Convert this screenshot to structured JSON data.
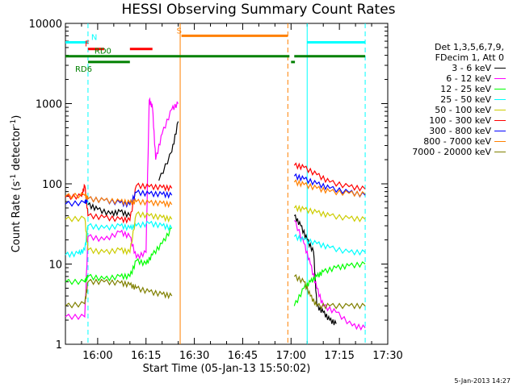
{
  "chart_data": {
    "type": "line",
    "title": "HESSI Observing Summary Count Rates",
    "xlabel": "Start Time (05-Jan-13 15:50:02)",
    "ylabel": "Count Rate (s⁻¹ detector⁻¹)",
    "ylabel_main": "Count Rate (s",
    "ylabel_sup1": "-1",
    "ylabel_mid": " detector",
    "ylabel_sup2": "-1",
    "ylabel_end": ")",
    "x_unit": "minutes after 15:50:02",
    "xlim": [
      0,
      100
    ],
    "ylim": [
      1,
      10000
    ],
    "y_scale": "log",
    "x_ticks": [
      {
        "x": 10,
        "label": "16:00"
      },
      {
        "x": 25,
        "label": "16:15"
      },
      {
        "x": 40,
        "label": "16:30"
      },
      {
        "x": 55,
        "label": "16:45"
      },
      {
        "x": 70,
        "label": "17:00"
      },
      {
        "x": 85,
        "label": "17:15"
      },
      {
        "x": 100,
        "label": "17:30"
      }
    ],
    "y_ticks": [
      {
        "y": 1,
        "label": "1"
      },
      {
        "y": 10,
        "label": "10"
      },
      {
        "y": 100,
        "label": "100"
      },
      {
        "y": 1000,
        "label": "1000"
      },
      {
        "y": 10000,
        "label": "10000"
      }
    ],
    "legend_header": [
      "Det 1,3,5,6,7,9,",
      "FDecim 1, Att 0"
    ],
    "legend_position": "right",
    "series": [
      {
        "name": "3 - 6 keV",
        "color": "#000000",
        "points": [
          [
            0,
            null
          ],
          [
            6,
            null
          ],
          [
            7,
            55
          ],
          [
            10,
            48
          ],
          [
            14,
            42
          ],
          [
            17,
            45
          ],
          [
            20,
            40
          ],
          [
            21,
            null
          ],
          [
            27,
            null
          ],
          [
            29,
            110
          ],
          [
            33,
            250
          ],
          [
            35,
            600
          ],
          [
            69,
            null
          ],
          [
            71,
            40
          ],
          [
            73,
            30
          ],
          [
            75,
            20
          ],
          [
            77,
            14
          ],
          [
            78,
            3
          ],
          [
            80,
            2.5
          ],
          [
            82,
            2
          ],
          [
            84,
            1.8
          ]
        ]
      },
      {
        "name": "6 - 12 keV",
        "color": "#ff00ff",
        "points": [
          [
            0,
            2.2
          ],
          [
            6,
            2.2
          ],
          [
            7,
            22
          ],
          [
            12,
            20
          ],
          [
            17,
            25
          ],
          [
            20,
            22
          ],
          [
            22,
            12
          ],
          [
            25,
            14
          ],
          [
            26,
            1100
          ],
          [
            27,
            900
          ],
          [
            28,
            200
          ],
          [
            30,
            420
          ],
          [
            33,
            850
          ],
          [
            35,
            1000
          ],
          [
            69,
            null
          ],
          [
            71,
            35
          ],
          [
            74,
            18
          ],
          [
            76,
            10
          ],
          [
            78,
            5
          ],
          [
            80,
            3
          ],
          [
            84,
            2.5
          ],
          [
            89,
            1.7
          ],
          [
            93,
            1.6
          ]
        ]
      },
      {
        "name": "12 - 25 keV",
        "color": "#00ff00",
        "points": [
          [
            0,
            6
          ],
          [
            6,
            6
          ],
          [
            7,
            7
          ],
          [
            12,
            6.5
          ],
          [
            17,
            7
          ],
          [
            20,
            7
          ],
          [
            22,
            11
          ],
          [
            25,
            10
          ],
          [
            27,
            13
          ],
          [
            30,
            18
          ],
          [
            33,
            28
          ],
          [
            35,
            null
          ],
          [
            69,
            null
          ],
          [
            71,
            3
          ],
          [
            74,
            5
          ],
          [
            76,
            6
          ],
          [
            78,
            7
          ],
          [
            80,
            8
          ],
          [
            84,
            9
          ],
          [
            88,
            9.5
          ],
          [
            93,
            10
          ]
        ]
      },
      {
        "name": "25 - 50 keV",
        "color": "#00ffff",
        "points": [
          [
            0,
            13
          ],
          [
            4,
            13.5
          ],
          [
            6,
            15
          ],
          [
            7,
            30
          ],
          [
            12,
            28
          ],
          [
            17,
            30
          ],
          [
            20,
            28
          ],
          [
            22,
            30
          ],
          [
            26,
            32
          ],
          [
            30,
            30
          ],
          [
            33,
            28
          ],
          [
            35,
            null
          ],
          [
            69,
            null
          ],
          [
            71,
            22
          ],
          [
            74,
            20
          ],
          [
            78,
            18
          ],
          [
            82,
            16
          ],
          [
            88,
            14
          ],
          [
            93,
            14
          ]
        ]
      },
      {
        "name": "50 - 100 keV",
        "color": "#cccc00",
        "points": [
          [
            0,
            36
          ],
          [
            6,
            37
          ],
          [
            7,
            15
          ],
          [
            12,
            14
          ],
          [
            17,
            15
          ],
          [
            20,
            14
          ],
          [
            22,
            42
          ],
          [
            26,
            40
          ],
          [
            30,
            38
          ],
          [
            33,
            36
          ],
          [
            35,
            null
          ],
          [
            69,
            null
          ],
          [
            71,
            50
          ],
          [
            74,
            48
          ],
          [
            78,
            44
          ],
          [
            82,
            40
          ],
          [
            88,
            37
          ],
          [
            93,
            36
          ]
        ]
      },
      {
        "name": "100 - 300 keV",
        "color": "#ff0000",
        "points": [
          [
            0,
            68
          ],
          [
            5,
            70
          ],
          [
            6,
            95
          ],
          [
            7,
            40
          ],
          [
            12,
            38
          ],
          [
            17,
            36
          ],
          [
            20,
            35
          ],
          [
            22,
            95
          ],
          [
            26,
            92
          ],
          [
            30,
            90
          ],
          [
            33,
            88
          ],
          [
            35,
            null
          ],
          [
            69,
            null
          ],
          [
            71,
            170
          ],
          [
            74,
            160
          ],
          [
            78,
            130
          ],
          [
            82,
            105
          ],
          [
            88,
            92
          ],
          [
            93,
            86
          ]
        ]
      },
      {
        "name": "300 - 800 keV",
        "color": "#0000ff",
        "points": [
          [
            0,
            56
          ],
          [
            6,
            58
          ],
          [
            7,
            65
          ],
          [
            12,
            62
          ],
          [
            17,
            58
          ],
          [
            20,
            55
          ],
          [
            22,
            78
          ],
          [
            26,
            75
          ],
          [
            30,
            74
          ],
          [
            33,
            72
          ],
          [
            35,
            null
          ],
          [
            69,
            null
          ],
          [
            71,
            125
          ],
          [
            74,
            115
          ],
          [
            78,
            100
          ],
          [
            82,
            88
          ],
          [
            88,
            78
          ],
          [
            93,
            72
          ]
        ]
      },
      {
        "name": "800 - 7000 keV",
        "color": "#ff8000",
        "points": [
          [
            0,
            70
          ],
          [
            6,
            72
          ],
          [
            7,
            65
          ],
          [
            12,
            62
          ],
          [
            17,
            60
          ],
          [
            20,
            58
          ],
          [
            22,
            60
          ],
          [
            26,
            58
          ],
          [
            30,
            57
          ],
          [
            33,
            55
          ],
          [
            35,
            null
          ],
          [
            69,
            null
          ],
          [
            71,
            105
          ],
          [
            74,
            98
          ],
          [
            78,
            88
          ],
          [
            82,
            80
          ],
          [
            88,
            76
          ],
          [
            93,
            74
          ]
        ]
      },
      {
        "name": "7000 - 20000 keV",
        "color": "#808000",
        "points": [
          [
            0,
            3
          ],
          [
            6,
            3.2
          ],
          [
            7,
            6
          ],
          [
            12,
            6
          ],
          [
            17,
            5.8
          ],
          [
            20,
            5.5
          ],
          [
            22,
            5
          ],
          [
            26,
            4.5
          ],
          [
            30,
            4.2
          ],
          [
            33,
            4
          ],
          [
            35,
            null
          ],
          [
            69,
            null
          ],
          [
            71,
            7
          ],
          [
            74,
            6
          ],
          [
            76,
            4
          ],
          [
            78,
            3
          ],
          [
            82,
            3
          ],
          [
            88,
            3
          ],
          [
            93,
            3
          ]
        ]
      }
    ],
    "vlines": [
      {
        "x": 7,
        "color": "#00ffff",
        "style": "dashed"
      },
      {
        "x": 35.6,
        "color": "#ff8000",
        "style": "solid"
      },
      {
        "x": 69,
        "color": "#ff8000",
        "style": "dashed"
      },
      {
        "x": 75,
        "color": "#00ffff",
        "style": "solid"
      },
      {
        "x": 93,
        "color": "#00ffff",
        "style": "dashed"
      }
    ],
    "flag_bars": [
      {
        "color": "#00ffff",
        "y": 5800,
        "segments": [
          [
            0,
            7
          ],
          [
            75,
            93
          ]
        ],
        "label": "N",
        "label_x": 8
      },
      {
        "color": "#ff0000",
        "y": 4800,
        "segments": [
          [
            7,
            12
          ],
          [
            20,
            27
          ]
        ],
        "label": "F",
        "label_x": 6
      },
      {
        "color": "#ff8000",
        "y": 7000,
        "segments": [
          [
            36,
            69
          ]
        ],
        "label": "S",
        "label_x": 34.5
      },
      {
        "color": "#008000",
        "y": 3900,
        "segments": [
          [
            0,
            35.6
          ],
          [
            35.6,
            69.5
          ],
          [
            71,
            93
          ]
        ],
        "label": "RD0",
        "label_x": 9
      },
      {
        "color": "#008000",
        "y": 3300,
        "segments": [
          [
            7,
            20
          ],
          [
            70,
            71.2
          ]
        ],
        "label": "RD6",
        "label_x": 3
      }
    ]
  },
  "footer_date": "5-Jan-2013 14:27"
}
